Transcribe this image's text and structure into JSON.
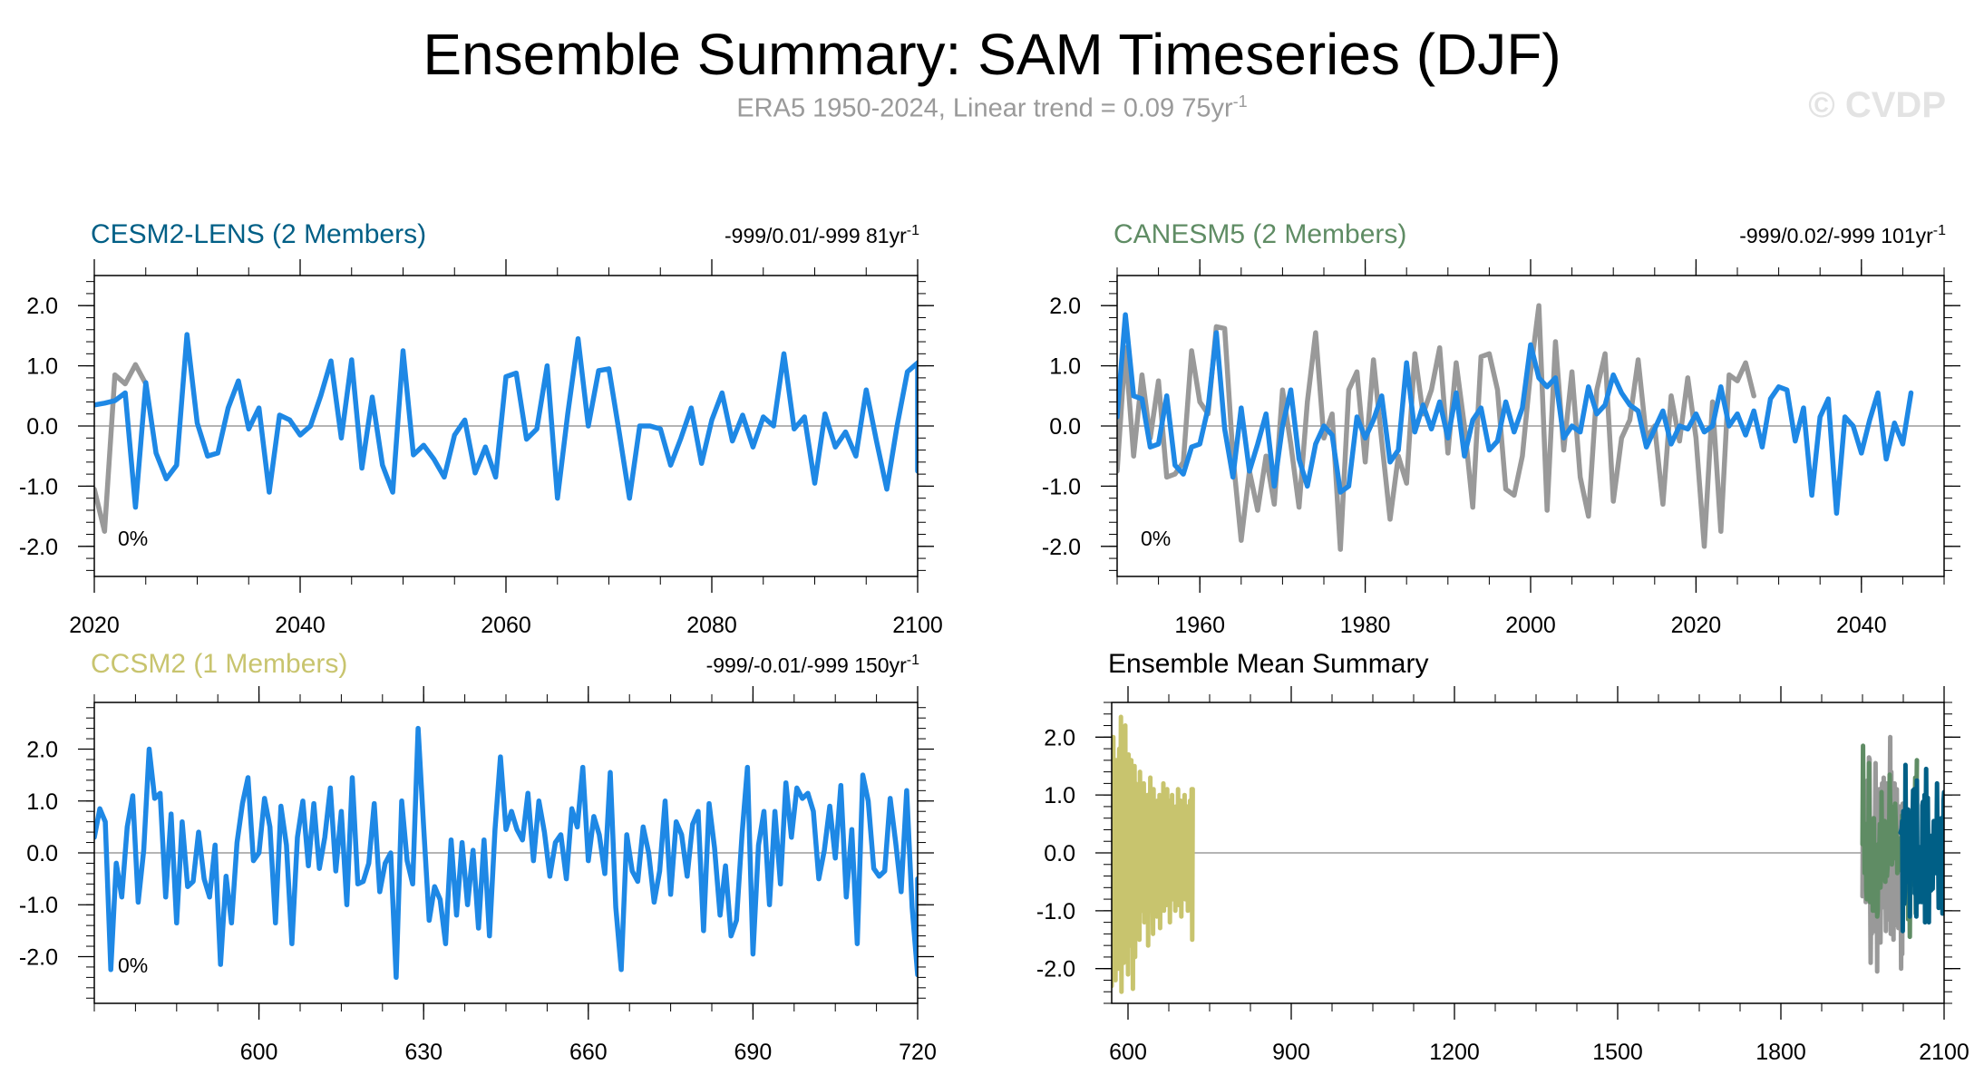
{
  "header": {
    "title": "Ensemble Summary: SAM Timeseries (DJF)",
    "subtitle": "ERA5 1950-2024, Linear trend = 0.09 75yr",
    "subtitle_sup": "-1",
    "watermark": "© CVDP"
  },
  "colors": {
    "line_blue": "#1e88e5",
    "ref_gray": "#999999",
    "cesm2": "#005f86",
    "canesm5": "#5f8c64",
    "ccsm2": "#c8c46e"
  },
  "chart_data": [
    {
      "type": "line",
      "title": "CESM2-LENS (2 Members)",
      "title_color": "#005f86",
      "stat": "-999/0.01/-999 81yr",
      "stat_sup": "-1",
      "percent_label": "0%",
      "xlim": [
        2020,
        2100
      ],
      "ylim": [
        -2.5,
        2.5
      ],
      "xticks": [
        2020,
        2040,
        2060,
        2080,
        2100
      ],
      "xtick_labels": [
        "2020",
        "2040",
        "2060",
        "2080",
        "2100"
      ],
      "yticks": [
        2,
        1,
        0,
        -1,
        -2
      ],
      "ytick_labels": [
        "2.0",
        "1.0",
        "0.0",
        "-1.0",
        "-2.0"
      ],
      "series": [
        {
          "color": "#999999",
          "x_start": 2020,
          "values": [
            -1.05,
            -1.75,
            0.85,
            0.7,
            1.02,
            0.7
          ]
        },
        {
          "color": "#1e88e5",
          "x_start": 2020,
          "values": [
            0.35,
            0.38,
            0.42,
            0.55,
            -1.35,
            0.72,
            -0.45,
            -0.88,
            -0.65,
            1.52,
            0.05,
            -0.5,
            -0.45,
            0.3,
            0.75,
            -0.05,
            0.3,
            -1.1,
            0.18,
            0.1,
            -0.15,
            0.0,
            0.5,
            1.08,
            -0.2,
            1.1,
            -0.7,
            0.48,
            -0.65,
            -1.1,
            1.25,
            -0.48,
            -0.32,
            -0.55,
            -0.85,
            -0.15,
            0.1,
            -0.78,
            -0.35,
            -0.85,
            0.82,
            0.88,
            -0.22,
            -0.05,
            1.0,
            -1.2,
            0.2,
            1.45,
            0.0,
            0.92,
            0.95,
            -0.1,
            -1.2,
            0.0,
            0.0,
            -0.05,
            -0.65,
            -0.2,
            0.3,
            -0.62,
            0.1,
            0.55,
            -0.25,
            0.18,
            -0.35,
            0.15,
            0.0,
            1.2,
            -0.05,
            0.15,
            -0.95,
            0.2,
            -0.35,
            -0.1,
            -0.5,
            0.6,
            -0.25,
            -1.05,
            0.0,
            0.9,
            1.05,
            -0.75
          ]
        }
      ]
    },
    {
      "type": "line",
      "title": "CANESM5 (2 Members)",
      "title_color": "#5f8c64",
      "stat": "-999/0.02/-999 101yr",
      "stat_sup": "-1",
      "percent_label": "0%",
      "xlim": [
        1950,
        2050
      ],
      "ylim": [
        -2.5,
        2.5
      ],
      "xticks": [
        1960,
        1980,
        2000,
        2020,
        2040
      ],
      "xtick_labels": [
        "1960",
        "1980",
        "2000",
        "2020",
        "2040"
      ],
      "yticks": [
        2,
        1,
        0,
        -1,
        -2
      ],
      "ytick_labels": [
        "2.0",
        "1.0",
        "0.0",
        "-1.0",
        "-2.0"
      ],
      "series": [
        {
          "color": "#999999",
          "x_start": 1950,
          "values": [
            -0.75,
            1.3,
            -0.5,
            0.85,
            -0.2,
            0.75,
            -0.85,
            -0.8,
            -0.6,
            1.25,
            0.4,
            0.2,
            1.65,
            1.62,
            -0.5,
            -1.9,
            -0.75,
            -1.4,
            -0.5,
            -1.3,
            0.6,
            -0.3,
            -1.35,
            0.4,
            1.55,
            -0.2,
            0.2,
            -2.05,
            0.6,
            0.9,
            -0.6,
            1.1,
            -0.25,
            -1.55,
            -0.5,
            -0.95,
            1.2,
            0.2,
            0.6,
            1.3,
            -0.45,
            1.05,
            0.0,
            -1.35,
            1.15,
            1.2,
            0.6,
            -1.05,
            -1.15,
            -0.5,
            0.9,
            2.0,
            -1.4,
            1.4,
            -0.4,
            0.9,
            -0.85,
            -1.5,
            0.6,
            1.2,
            -1.25,
            -0.2,
            0.1,
            1.1,
            -0.2,
            0.0,
            -1.3,
            0.5,
            -0.25,
            0.8,
            -0.2,
            -2.0,
            0.4,
            -1.75,
            0.85,
            0.75,
            1.05,
            0.5
          ]
        },
        {
          "color": "#1e88e5",
          "x_start": 1950,
          "values": [
            0.15,
            1.85,
            0.5,
            0.45,
            -0.35,
            -0.3,
            0.5,
            -0.65,
            -0.8,
            -0.35,
            -0.3,
            0.3,
            1.55,
            -0.05,
            -0.85,
            0.3,
            -0.75,
            -0.3,
            0.2,
            -1.0,
            0.0,
            0.6,
            -0.55,
            -1.0,
            -0.3,
            0.0,
            -0.15,
            -1.1,
            -1.0,
            0.15,
            -0.2,
            0.1,
            0.5,
            -0.6,
            -0.4,
            1.05,
            -0.1,
            0.35,
            -0.05,
            0.4,
            -0.2,
            0.55,
            -0.5,
            0.1,
            0.3,
            -0.4,
            -0.25,
            0.4,
            -0.1,
            0.3,
            1.35,
            0.8,
            0.65,
            0.8,
            -0.2,
            0.0,
            -0.1,
            0.65,
            0.2,
            0.35,
            0.85,
            0.55,
            0.35,
            0.25,
            -0.35,
            -0.05,
            0.25,
            -0.3,
            0.0,
            -0.05,
            0.2,
            -0.1,
            0.0,
            0.65,
            0.0,
            0.2,
            -0.15,
            0.25,
            -0.35,
            0.45,
            0.65,
            0.6,
            -0.25,
            0.3,
            -1.15,
            0.15,
            0.45,
            -1.45,
            0.15,
            0.0,
            -0.45,
            0.1,
            0.55,
            -0.55,
            0.05,
            -0.3,
            0.55
          ]
        }
      ]
    },
    {
      "type": "line",
      "title": "CCSM2 (1 Members)",
      "title_color": "#c8c46e",
      "stat": "-999/-0.01/-999 150yr",
      "stat_sup": "-1",
      "percent_label": "0%",
      "xlim": [
        570,
        720
      ],
      "ylim": [
        -2.9,
        2.9
      ],
      "xticks": [
        600,
        630,
        660,
        690,
        720
      ],
      "xtick_labels": [
        "600",
        "630",
        "660",
        "690",
        "720"
      ],
      "yticks": [
        2,
        1,
        0,
        -1,
        -2
      ],
      "ytick_labels": [
        "2.0",
        "1.0",
        "0.0",
        "-1.0",
        "-2.0"
      ],
      "series": [
        {
          "color": "#1e88e5",
          "x_start": 570,
          "values": [
            0.3,
            0.85,
            0.6,
            -2.25,
            -0.2,
            -0.85,
            0.5,
            1.1,
            -0.95,
            0.05,
            2.0,
            1.05,
            1.15,
            -0.85,
            0.75,
            -1.35,
            0.6,
            -0.65,
            -0.55,
            0.4,
            -0.5,
            -0.85,
            0.15,
            -2.15,
            -0.45,
            -1.35,
            0.2,
            0.95,
            1.45,
            -0.15,
            0.0,
            1.05,
            0.5,
            -1.35,
            0.9,
            0.15,
            -1.75,
            0.3,
            1.0,
            -0.25,
            0.95,
            -0.3,
            0.3,
            1.25,
            -0.35,
            0.8,
            -1.0,
            1.45,
            -0.6,
            -0.55,
            -0.2,
            0.95,
            -0.75,
            -0.2,
            0.0,
            -2.4,
            1.0,
            -0.15,
            -0.6,
            2.4,
            0.5,
            -1.3,
            -0.65,
            -0.9,
            -1.75,
            0.25,
            -1.2,
            0.2,
            -1.0,
            0.05,
            -1.45,
            0.25,
            -1.6,
            0.45,
            1.85,
            0.45,
            0.8,
            0.45,
            0.25,
            1.15,
            -0.15,
            1.0,
            0.4,
            -0.45,
            0.2,
            0.35,
            -0.5,
            0.85,
            0.5,
            1.65,
            -0.15,
            0.7,
            0.35,
            -0.4,
            1.55,
            -1.05,
            -2.25,
            0.35,
            -0.35,
            -0.55,
            0.5,
            0.0,
            -0.95,
            -0.35,
            1.0,
            -0.8,
            0.6,
            0.35,
            -0.45,
            0.55,
            0.8,
            -1.5,
            0.95,
            0.1,
            -1.2,
            -0.25,
            -1.6,
            -1.3,
            0.35,
            1.65,
            -1.95,
            0.15,
            0.8,
            -1.0,
            0.8,
            -0.6,
            1.35,
            0.3,
            1.25,
            1.05,
            1.15,
            0.8,
            -0.5,
            0.05,
            0.9,
            -0.1,
            1.3,
            -0.85,
            0.45,
            -1.75,
            1.5,
            1.0,
            -0.3,
            -0.45,
            -0.35,
            1.05,
            0.2,
            -0.75,
            1.2,
            -1.05,
            -2.35,
            -0.5
          ]
        }
      ]
    },
    {
      "type": "line",
      "title": "Ensemble Mean Summary",
      "title_color": "#000000",
      "xlim": [
        570,
        2100
      ],
      "ylim": [
        -2.6,
        2.6
      ],
      "xticks": [
        600,
        900,
        1200,
        1500,
        1800,
        2100
      ],
      "xtick_labels": [
        "600",
        "900",
        "1200",
        "1500",
        "1800",
        "2100"
      ],
      "yticks": [
        2,
        1,
        0,
        -1,
        -2
      ],
      "ytick_labels": [
        "2.0",
        "1.0",
        "0.0",
        "-1.0",
        "-2.0"
      ],
      "series": [
        {
          "color": "#c8c46e",
          "x_start": 570,
          "values": [
            -2.3,
            0.9,
            1.0,
            2.0,
            -1.5,
            1.2,
            0.3,
            -2.2,
            1.6,
            -0.8,
            0.2,
            1.4,
            -2.0,
            0.6,
            1.8,
            -1.2,
            0.4,
            2.35,
            -2.4,
            1.1,
            -0.5,
            1.3,
            -1.9,
            0.8,
            0.0,
            2.2,
            -1.3,
            1.5,
            -0.7,
            0.9,
            -2.1,
            1.7,
            -0.4,
            0.5,
            -1.6,
            1.0,
            1.6,
            -0.9,
            0.7,
            -2.35,
            1.3,
            -1.1,
            1.5,
            -1.8,
            1.2,
            0.3,
            -1.4,
            0.6,
            1.0,
            -0.6,
            0.2,
            -1.5,
            1.4,
            0.0,
            -0.3,
            1.1,
            -1.0,
            0.8,
            -0.6,
            1.2,
            -1.2,
            0.4,
            0.9,
            -0.8,
            0.5,
            -0.4,
            1.0,
            -1.6,
            0.3,
            0.6,
            -0.5,
            1.3,
            -1.0,
            0.2,
            0.7,
            -0.3,
            -1.4,
            1.1,
            -0.9,
            0.4,
            0.8,
            -0.7,
            0.2,
            -1.1,
            0.9,
            -0.2,
            0.6,
            -0.6,
            1.0,
            -1.3,
            0.5,
            0.3,
            -0.8,
            0.7,
            -0.4,
            1.2,
            -1.0,
            0.1,
            0.8,
            -0.5,
            0.4,
            -0.9,
            1.1,
            -0.3,
            0.6,
            -0.7,
            0.9,
            -1.2,
            0.3,
            0.5,
            -0.4,
            1.0,
            -0.8,
            0.2,
            0.7,
            -0.6,
            0.4,
            -1.0,
            0.8,
            -0.1,
            0.5,
            -0.5,
            1.1,
            -0.9,
            0.3,
            0.6,
            -0.3,
            0.9,
            -1.1,
            0.2,
            0.7,
            -0.7,
            0.4,
            -0.2,
            1.0,
            -0.8,
            0.5,
            0.1,
            -0.6,
            0.8,
            -1.0,
            0.3,
            0.6,
            -0.4,
            0.9,
            -0.9,
            0.2,
            1.1,
            -1.5,
            1.1
          ]
        },
        {
          "color": "#999999",
          "x_start": 1950,
          "values": [
            -0.75,
            1.3,
            -0.5,
            0.85,
            -0.2,
            0.75,
            -0.85,
            -0.8,
            -0.6,
            1.25,
            0.4,
            0.2,
            1.65,
            1.62,
            -0.5,
            -1.9,
            -0.75,
            -1.4,
            -0.5,
            -1.3,
            0.6,
            -0.3,
            -1.35,
            0.4,
            1.55,
            -0.2,
            0.2,
            -2.05,
            0.6,
            0.9,
            -0.6,
            1.1,
            -0.25,
            -1.55,
            -0.5,
            -0.95,
            1.2,
            0.2,
            0.6,
            1.3,
            -0.45,
            1.05,
            0.0,
            -1.35,
            1.15,
            1.2,
            0.6,
            -1.05,
            -1.15,
            -0.5,
            0.9,
            2.0,
            -1.4,
            1.4,
            -0.4,
            0.9,
            -0.85,
            -1.5,
            0.6,
            1.2,
            -1.25,
            -0.2,
            0.1,
            1.1,
            -0.2,
            0.0,
            -1.3,
            0.5,
            -0.25,
            0.8,
            -0.2,
            -2.0,
            0.4,
            -1.75,
            0.85
          ]
        },
        {
          "color": "#5f8c64",
          "x_start": 1950,
          "values": [
            0.15,
            1.85,
            0.5,
            0.45,
            -0.35,
            -0.3,
            0.5,
            -0.65,
            -0.8,
            -0.35,
            -0.3,
            0.3,
            1.55,
            -0.05,
            -0.85,
            0.3,
            -0.75,
            -0.3,
            0.2,
            -1.0,
            0.0,
            0.6,
            -0.55,
            -1.0,
            -0.3,
            0.0,
            -0.15,
            -1.1,
            -1.0,
            0.15,
            -0.2,
            0.1,
            0.5,
            -0.6,
            -0.4,
            1.05,
            -0.1,
            0.35,
            -0.05,
            0.4,
            -0.2,
            0.55,
            -0.5,
            0.1,
            0.3,
            -0.4,
            -0.25,
            0.4,
            -0.1,
            0.3,
            1.35,
            0.8,
            0.65,
            0.8,
            -0.2,
            0.0,
            -0.1,
            0.65,
            0.2,
            0.35,
            0.85,
            0.55,
            0.35,
            0.25,
            -0.35,
            -0.05,
            0.25,
            -0.3,
            0.0,
            -0.05,
            0.2,
            -0.1,
            0.0,
            0.65,
            0.0,
            0.2,
            -0.15,
            0.25,
            -0.35,
            0.45,
            0.65,
            0.6,
            -0.25,
            0.3,
            -1.15,
            0.15,
            0.45,
            -1.45,
            0.15,
            0.0,
            -0.45,
            0.1,
            0.55,
            -0.55,
            0.05,
            -0.3,
            0.55,
            1.3,
            -1.05,
            0.7,
            1.6
          ]
        },
        {
          "color": "#005f86",
          "x_start": 2020,
          "values": [
            0.35,
            0.38,
            0.42,
            0.55,
            -1.35,
            0.72,
            -0.45,
            -0.88,
            -0.65,
            1.52,
            0.05,
            -0.5,
            -0.45,
            0.3,
            0.75,
            -0.05,
            0.3,
            -1.1,
            0.18,
            0.1,
            -0.15,
            0.0,
            0.5,
            1.08,
            -0.2,
            1.1,
            -0.7,
            0.48,
            -0.65,
            -1.1,
            1.25,
            -0.48,
            -0.32,
            -0.55,
            -0.85,
            -0.15,
            0.1,
            -0.78,
            -0.35,
            -0.85,
            0.82,
            0.88,
            -0.22,
            -0.05,
            1.0,
            -1.2,
            0.2,
            1.45,
            0.0,
            0.92,
            0.95,
            -0.1,
            -1.2,
            0.0,
            0.0,
            -0.05,
            -0.65,
            -0.2,
            0.3,
            -0.62,
            0.1,
            0.55,
            -0.25,
            0.18,
            -0.35,
            0.15,
            0.0,
            1.2,
            -0.05,
            0.15,
            -0.95,
            0.2,
            -0.35,
            -0.1,
            -0.5,
            0.6,
            -0.25,
            -1.05,
            0.0,
            0.9,
            1.05
          ]
        }
      ]
    }
  ]
}
